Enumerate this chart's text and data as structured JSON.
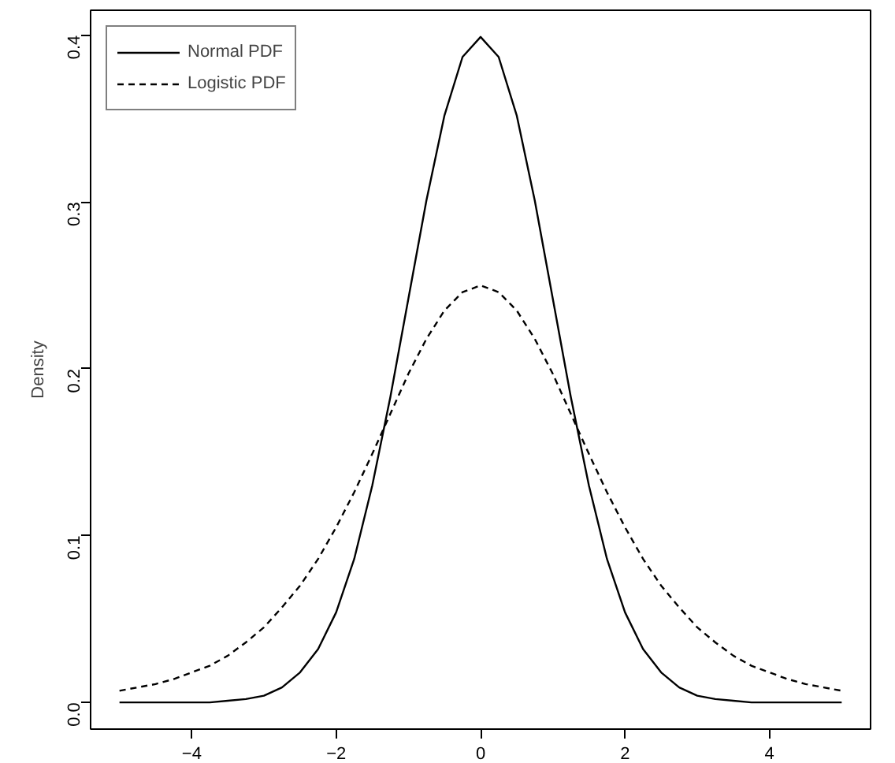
{
  "chart_data": {
    "type": "line",
    "ylabel": "Density",
    "x": [
      -5,
      -4.75,
      -4.5,
      -4.25,
      -4,
      -3.75,
      -3.5,
      -3.25,
      -3,
      -2.75,
      -2.5,
      -2.25,
      -2,
      -1.75,
      -1.5,
      -1.25,
      -1,
      -0.75,
      -0.5,
      -0.25,
      0,
      0.25,
      0.5,
      0.75,
      1,
      1.25,
      1.5,
      1.75,
      2,
      2.25,
      2.5,
      2.75,
      3,
      3.25,
      3.5,
      3.75,
      4,
      4.25,
      4.5,
      4.75,
      5
    ],
    "series": [
      {
        "name": "Normal PDF",
        "color": "#000000",
        "line_style": "solid",
        "values": [
          0.0,
          0.0,
          0.0,
          0.0,
          0.0,
          0.0,
          0.001,
          0.002,
          0.004,
          0.009,
          0.018,
          0.032,
          0.054,
          0.086,
          0.13,
          0.183,
          0.242,
          0.301,
          0.352,
          0.387,
          0.399,
          0.387,
          0.352,
          0.301,
          0.242,
          0.183,
          0.13,
          0.086,
          0.054,
          0.032,
          0.018,
          0.009,
          0.004,
          0.002,
          0.001,
          0.0,
          0.0,
          0.0,
          0.0,
          0.0,
          0.0
        ]
      },
      {
        "name": "Logistic PDF",
        "color": "#000000",
        "line_style": "dashed",
        "values": [
          0.007,
          0.009,
          0.011,
          0.014,
          0.018,
          0.022,
          0.028,
          0.036,
          0.045,
          0.057,
          0.07,
          0.086,
          0.105,
          0.126,
          0.149,
          0.173,
          0.197,
          0.218,
          0.235,
          0.246,
          0.25,
          0.246,
          0.235,
          0.218,
          0.197,
          0.173,
          0.149,
          0.126,
          0.105,
          0.086,
          0.07,
          0.057,
          0.045,
          0.036,
          0.028,
          0.022,
          0.018,
          0.014,
          0.011,
          0.009,
          0.007
        ]
      }
    ],
    "xlim": [
      -5.4,
      5.4
    ],
    "ylim": [
      -0.016,
      0.415
    ],
    "xticks": [
      {
        "value": -4,
        "label": "−4"
      },
      {
        "value": -2,
        "label": "−2"
      },
      0,
      2,
      4
    ],
    "yticks": [
      {
        "value": 0,
        "label": "0.0"
      },
      {
        "value": 0.1,
        "label": "0.1"
      },
      {
        "value": 0.2,
        "label": "0.2"
      },
      {
        "value": 0.3,
        "label": "0.3"
      },
      {
        "value": 0.4,
        "label": "0.4"
      }
    ],
    "grid": false,
    "legend": "top left"
  }
}
